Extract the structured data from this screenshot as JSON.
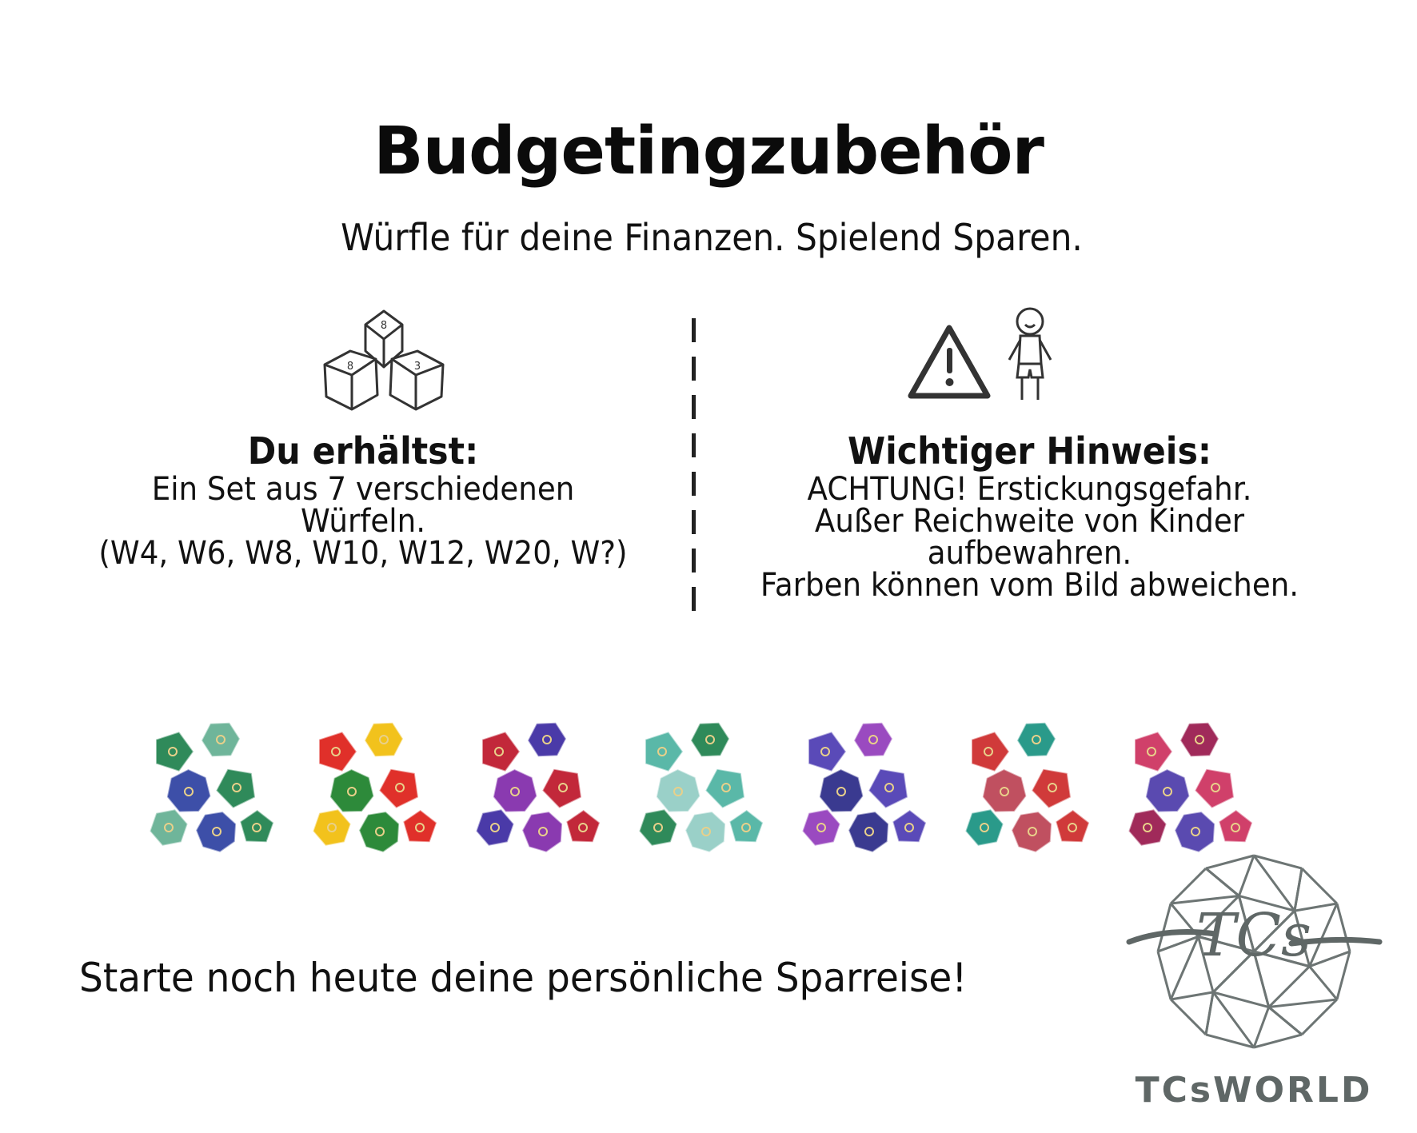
{
  "title": "Budgetingzubehör",
  "subtitle": "Würfle für deine Finanzen. Spielend Sparen.",
  "left_section": {
    "icon": "dice-icon",
    "heading": "Du erhältst:",
    "lines": [
      "Ein Set aus 7 verschiedenen",
      "Würfeln.",
      "(W4, W6, W8, W10, W12, W20, W?)"
    ]
  },
  "right_section": {
    "icon": "warning-child-icon",
    "heading": "Wichtiger Hinweis:",
    "lines": [
      "ACHTUNG! Erstickungsgefahr.",
      "Außer Reichweite von Kinder",
      "aufbewahren.",
      "Farben können vom Bild abweichen."
    ]
  },
  "dice_sets": [
    {
      "colors": [
        "#2f8a5a",
        "#6fb59a",
        "#3d4fa8"
      ]
    },
    {
      "colors": [
        "#e0302a",
        "#f2c21c",
        "#2d8a3a"
      ]
    },
    {
      "colors": [
        "#c2283a",
        "#4a3aa8",
        "#8a3ab0"
      ]
    },
    {
      "colors": [
        "#5ab8a8",
        "#2f8a5a",
        "#9ad0c8"
      ]
    },
    {
      "colors": [
        "#5a4ab8",
        "#9a4ac0",
        "#3a3a90"
      ]
    },
    {
      "colors": [
        "#d03a3a",
        "#2a9a8a",
        "#c05060"
      ]
    },
    {
      "colors": [
        "#d0406a",
        "#a02a5a",
        "#5a4ab0"
      ]
    }
  ],
  "cta": "Starte noch heute deine persönliche Sparreise!",
  "logo": {
    "monogram": "TCs",
    "wordmark": "TCsWorld",
    "color": "#5f6766"
  }
}
